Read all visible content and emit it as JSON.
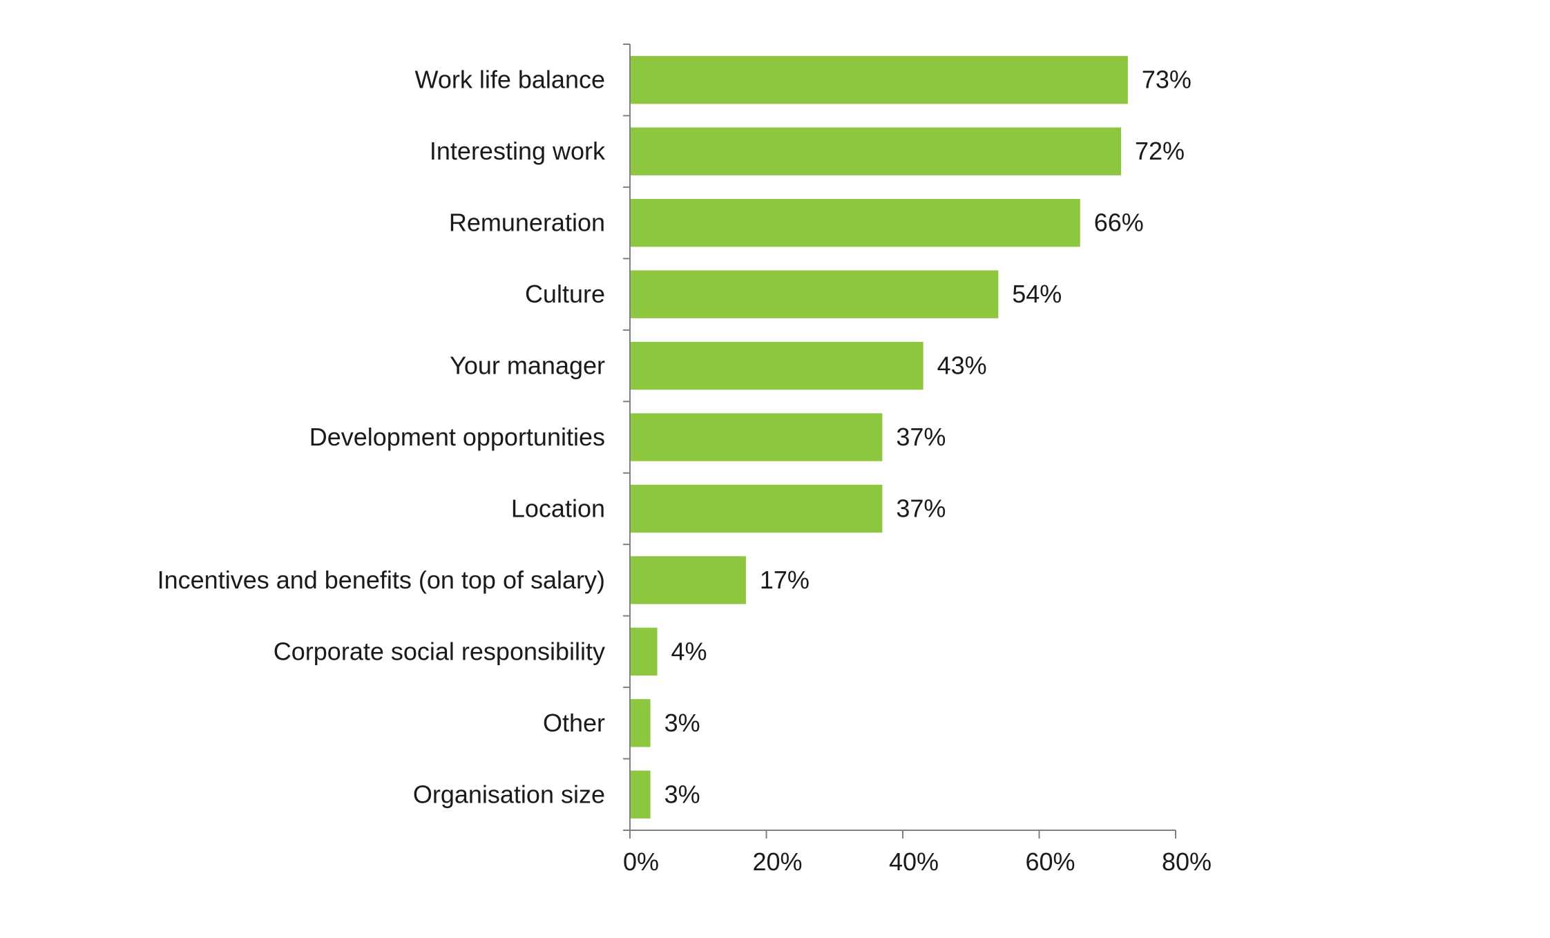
{
  "chart_data": {
    "type": "bar",
    "orientation": "horizontal",
    "categories": [
      "Work life balance",
      "Interesting work",
      "Remuneration",
      "Culture",
      "Your manager",
      "Development opportunities",
      "Location",
      "Incentives and benefits (on top of salary)",
      "Corporate social responsibility",
      "Other",
      "Organisation size"
    ],
    "values": [
      73,
      72,
      66,
      54,
      43,
      37,
      37,
      17,
      4,
      3,
      3
    ],
    "value_labels": [
      "73%",
      "72%",
      "66%",
      "54%",
      "43%",
      "37%",
      "37%",
      "17%",
      "4%",
      "3%",
      "3%"
    ],
    "xlim": [
      0,
      80
    ],
    "xticks": [
      0,
      20,
      40,
      60,
      80
    ],
    "xtick_labels": [
      "0%",
      "20%",
      "40%",
      "60%",
      "80%"
    ],
    "grid": false,
    "legend": "none",
    "bar_color": "#8DC63F",
    "axis_color": "#808080",
    "text_color": "#1a1a1a"
  }
}
